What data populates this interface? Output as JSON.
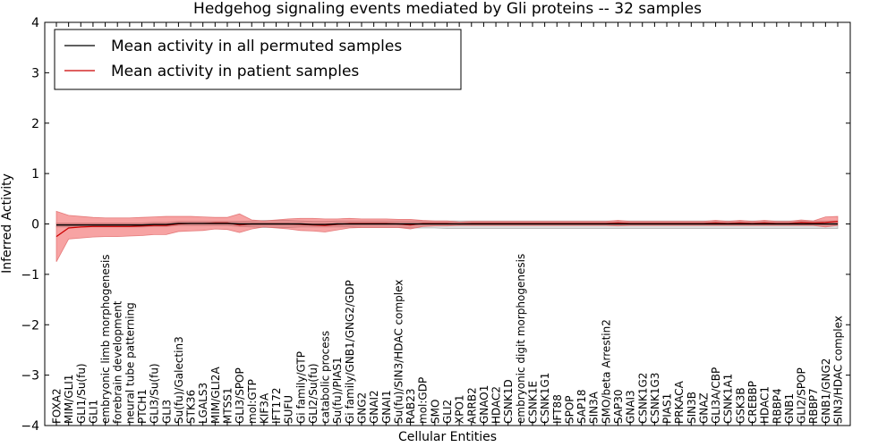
{
  "chart_data": {
    "type": "line",
    "title": "Hedgehog signaling events mediated by Gli proteins -- 32 samples",
    "xlabel": "Cellular Entities",
    "ylabel": "Inferred Activity",
    "ylim": [
      -4,
      4
    ],
    "yticks": [
      -4,
      -3,
      -2,
      -1,
      0,
      1,
      2,
      3,
      4
    ],
    "ytick_labels": [
      "−4",
      "−3",
      "−2",
      "−1",
      "0",
      "1",
      "2",
      "3",
      "4"
    ],
    "legend_position": "top-left",
    "categories": [
      "FOXA2",
      "MIM/GLI1",
      "GLI1/Su(fu)",
      "GLI1",
      "embryonic limb morphogenesis",
      "forebrain development",
      "neural tube patterning",
      "PTCH1",
      "GLI3/Su(fu)",
      "GLI3",
      "Su(fu)/Galectin3",
      "STK36",
      "LGALS3",
      "MIM/GLI2A",
      "MTSS1",
      "GLI3/SPOP",
      "mol:GTP",
      "KIF3A",
      "IFT172",
      "SUFU",
      "Gi family/GTP",
      "GLI2/Su(fu)",
      "catabolic process",
      "Su(fu)/PIAS1",
      "Gi family/GNB1/GNG2/GDP",
      "GNG2",
      "GNAI2",
      "GNAI1",
      "Su(fu)/SIN3/HDAC complex",
      "RAB23",
      "mol:GDP",
      "SMO",
      "GLI2",
      "XPO1",
      "ARRB2",
      "GNAO1",
      "HDAC2",
      "CSNK1D",
      "embryonic digit morphogenesis",
      "CSNK1E",
      "CSNK1G1",
      "IFT88",
      "SPOP",
      "SAP18",
      "SIN3A",
      "SMO/beta Arrestin2",
      "SAP30",
      "GNAI3",
      "CSNK1G2",
      "CSNK1G3",
      "PIAS1",
      "PRKACA",
      "SIN3B",
      "GNAZ",
      "GLI3A/CBP",
      "CSNK1A1",
      "GSK3B",
      "CREBBP",
      "HDAC1",
      "RBBP4",
      "GNB1",
      "GLI2/SPOP",
      "RBBP7",
      "GNB1/GNG2",
      "SIN3/HDAC complex"
    ],
    "series": [
      {
        "name": "Mean activity in all permuted samples",
        "color": "#000000",
        "values": [
          -0.02,
          -0.02,
          -0.02,
          -0.02,
          -0.02,
          -0.02,
          -0.02,
          -0.02,
          -0.01,
          -0.01,
          0.01,
          0.01,
          0.01,
          0.01,
          0.01,
          0.0,
          0.0,
          0.0,
          0.0,
          0.0,
          0.0,
          -0.01,
          -0.01,
          0.0,
          0.0,
          0.0,
          0.0,
          0.0,
          0.0,
          0.0,
          0.0,
          0.0,
          0.0,
          0.0,
          0.0,
          0.0,
          0.0,
          0.0,
          0.0,
          0.0,
          0.0,
          0.0,
          0.0,
          0.0,
          0.0,
          0.0,
          0.0,
          0.0,
          0.0,
          0.0,
          0.0,
          0.0,
          0.0,
          0.0,
          0.0,
          0.0,
          0.0,
          0.0,
          0.0,
          0.0,
          0.0,
          0.0,
          0.0,
          0.0,
          0.0
        ],
        "band_lower": [
          -0.06,
          -0.06,
          -0.06,
          -0.06,
          -0.06,
          -0.06,
          -0.06,
          -0.06,
          -0.05,
          -0.05,
          -0.03,
          -0.03,
          -0.03,
          -0.03,
          -0.03,
          -0.05,
          -0.06,
          -0.07,
          -0.07,
          -0.07,
          -0.06,
          -0.06,
          -0.06,
          -0.06,
          -0.06,
          -0.07,
          -0.07,
          -0.07,
          -0.07,
          -0.08,
          -0.08,
          -0.08,
          -0.09,
          -0.09,
          -0.09,
          -0.09,
          -0.09,
          -0.09,
          -0.09,
          -0.09,
          -0.09,
          -0.09,
          -0.09,
          -0.09,
          -0.09,
          -0.09,
          -0.09,
          -0.09,
          -0.09,
          -0.09,
          -0.09,
          -0.09,
          -0.09,
          -0.09,
          -0.09,
          -0.09,
          -0.09,
          -0.09,
          -0.09,
          -0.09,
          -0.09,
          -0.09,
          -0.09,
          -0.09,
          -0.09
        ],
        "band_upper": [
          0.02,
          0.02,
          0.02,
          0.02,
          0.02,
          0.02,
          0.02,
          0.02,
          0.03,
          0.03,
          0.05,
          0.05,
          0.05,
          0.05,
          0.05,
          0.05,
          0.06,
          0.07,
          0.07,
          0.07,
          0.06,
          0.05,
          0.05,
          0.06,
          0.06,
          0.06,
          0.06,
          0.06,
          0.06,
          0.06,
          0.06,
          0.06,
          0.06,
          0.06,
          0.06,
          0.06,
          0.06,
          0.06,
          0.06,
          0.06,
          0.06,
          0.06,
          0.06,
          0.06,
          0.06,
          0.06,
          0.06,
          0.06,
          0.06,
          0.06,
          0.06,
          0.06,
          0.06,
          0.06,
          0.06,
          0.06,
          0.06,
          0.06,
          0.06,
          0.06,
          0.06,
          0.06,
          0.06,
          0.06,
          0.06
        ]
      },
      {
        "name": "Mean activity in patient samples",
        "color": "#cc0000",
        "values": [
          -0.25,
          -0.08,
          -0.06,
          -0.05,
          -0.05,
          -0.05,
          -0.05,
          -0.04,
          -0.03,
          -0.03,
          0.0,
          0.01,
          0.01,
          0.02,
          0.02,
          -0.02,
          0.0,
          0.0,
          0.0,
          0.0,
          -0.01,
          -0.02,
          -0.03,
          -0.01,
          0.01,
          0.01,
          0.01,
          0.01,
          0.0,
          -0.02,
          0.01,
          0.01,
          0.01,
          0.0,
          0.01,
          0.01,
          0.01,
          0.01,
          0.01,
          0.01,
          0.01,
          0.01,
          0.01,
          0.01,
          0.01,
          0.01,
          0.02,
          0.01,
          0.01,
          0.01,
          0.01,
          0.01,
          0.01,
          0.01,
          0.02,
          0.01,
          0.02,
          0.01,
          0.02,
          0.01,
          0.01,
          0.03,
          0.02,
          0.03,
          0.05
        ],
        "band_lower": [
          -0.75,
          -0.3,
          -0.28,
          -0.26,
          -0.25,
          -0.25,
          -0.24,
          -0.23,
          -0.21,
          -0.21,
          -0.15,
          -0.14,
          -0.13,
          -0.1,
          -0.11,
          -0.17,
          -0.1,
          -0.06,
          -0.08,
          -0.1,
          -0.13,
          -0.14,
          -0.16,
          -0.12,
          -0.08,
          -0.07,
          -0.07,
          -0.07,
          -0.07,
          -0.1,
          -0.05,
          -0.04,
          -0.04,
          -0.03,
          -0.03,
          -0.03,
          -0.03,
          -0.03,
          -0.03,
          -0.03,
          -0.03,
          -0.03,
          -0.03,
          -0.03,
          -0.03,
          -0.03,
          -0.04,
          -0.03,
          -0.03,
          -0.03,
          -0.03,
          -0.03,
          -0.03,
          -0.03,
          -0.03,
          -0.03,
          -0.03,
          -0.03,
          -0.03,
          -0.03,
          -0.03,
          -0.03,
          -0.03,
          -0.06,
          -0.03
        ],
        "band_upper": [
          0.25,
          0.17,
          0.15,
          0.13,
          0.12,
          0.12,
          0.12,
          0.13,
          0.14,
          0.15,
          0.15,
          0.15,
          0.14,
          0.13,
          0.13,
          0.2,
          0.08,
          0.06,
          0.08,
          0.1,
          0.11,
          0.11,
          0.1,
          0.1,
          0.11,
          0.1,
          0.1,
          0.1,
          0.09,
          0.09,
          0.07,
          0.06,
          0.06,
          0.04,
          0.05,
          0.05,
          0.05,
          0.05,
          0.05,
          0.05,
          0.05,
          0.05,
          0.05,
          0.05,
          0.05,
          0.05,
          0.07,
          0.05,
          0.05,
          0.05,
          0.05,
          0.05,
          0.05,
          0.05,
          0.07,
          0.05,
          0.07,
          0.05,
          0.07,
          0.05,
          0.05,
          0.08,
          0.06,
          0.14,
          0.15
        ]
      }
    ]
  }
}
